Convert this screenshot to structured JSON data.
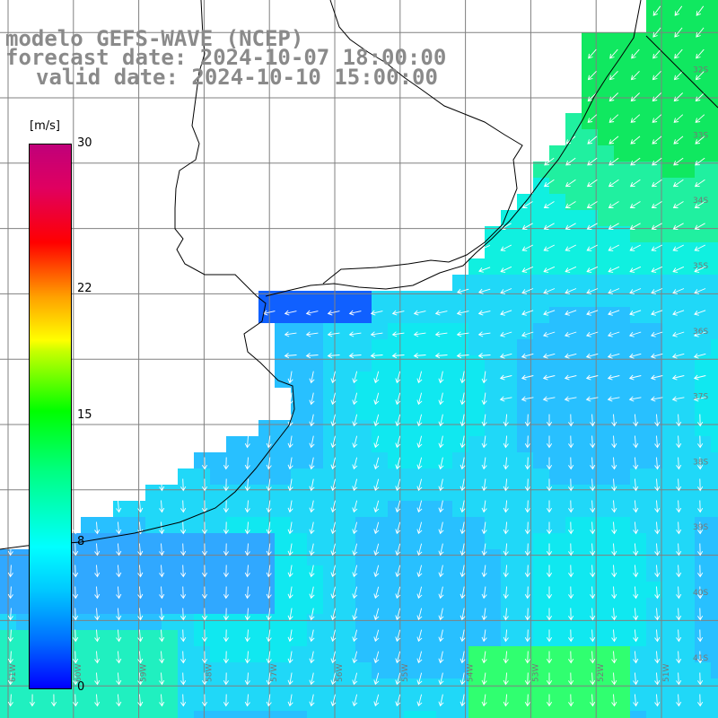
{
  "title": {
    "line1": "modelo GEFS-WAVE (NCEP)",
    "line2": "forecast date: 2024-10-07 18:00:00",
    "line3": "valid date: 2024-10-10 15:00:00"
  },
  "colorbar": {
    "unit": "[m/s]",
    "min": 0,
    "max": 30,
    "ticks": [
      {
        "value": 30,
        "label": "30"
      },
      {
        "value": 22,
        "label": "22"
      },
      {
        "value": 15,
        "label": "15"
      },
      {
        "value": 8,
        "label": "8"
      },
      {
        "value": 0,
        "label": "0"
      }
    ]
  },
  "map": {
    "lon_range": [
      -62,
      -51
    ],
    "lat_range": [
      -41.5,
      -31
    ],
    "lon_labels": [
      "61W",
      "60W",
      "59W",
      "58W",
      "57W",
      "56W",
      "55W",
      "54W",
      "53W",
      "52W",
      "51W"
    ],
    "lat_labels": [
      "32S",
      "33S",
      "34S",
      "35S",
      "36S",
      "37S",
      "38S",
      "39S",
      "40S",
      "41S"
    ],
    "colors": {
      "land": "#ffffff",
      "grid": "#808080",
      "coast": "#000000",
      "arrow": "#ffffff"
    }
  }
}
